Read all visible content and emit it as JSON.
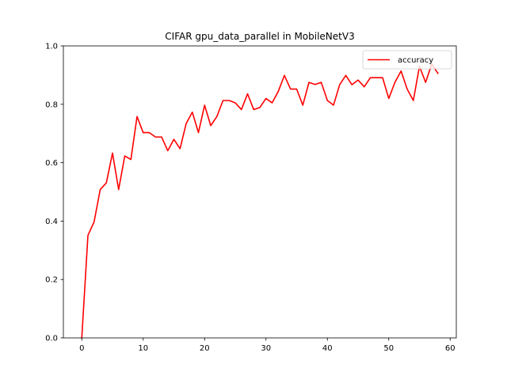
{
  "chart_data": {
    "type": "line",
    "title": "CIFAR gpu_data_parallel in MobileNetV3",
    "xlabel": "",
    "ylabel": "",
    "xlim": [
      -3,
      61
    ],
    "ylim": [
      0,
      1.0
    ],
    "xticks": [
      0,
      10,
      20,
      30,
      40,
      50,
      60
    ],
    "yticks": [
      0.0,
      0.2,
      0.4,
      0.6,
      0.8,
      1.0
    ],
    "xtick_labels": [
      "0",
      "10",
      "20",
      "30",
      "40",
      "50",
      "60"
    ],
    "ytick_labels": [
      "0.0",
      "0.2",
      "0.4",
      "0.6",
      "0.8",
      "1.0"
    ],
    "grid": false,
    "legend_placement": "upper right",
    "series": [
      {
        "name": "accuracy",
        "color": "#ff0000",
        "x": [
          0,
          1,
          2,
          3,
          4,
          5,
          6,
          7,
          8,
          9,
          10,
          11,
          12,
          13,
          14,
          15,
          16,
          17,
          18,
          19,
          20,
          21,
          22,
          23,
          24,
          25,
          26,
          27,
          28,
          29,
          30,
          31,
          32,
          33,
          34,
          35,
          36,
          37,
          38,
          39,
          40,
          41,
          42,
          43,
          44,
          45,
          46,
          47,
          48,
          49,
          50,
          51,
          52,
          53,
          54,
          55,
          56,
          57,
          58
        ],
        "values": [
          0.0,
          0.351,
          0.397,
          0.508,
          0.531,
          0.633,
          0.508,
          0.623,
          0.611,
          0.758,
          0.703,
          0.703,
          0.688,
          0.688,
          0.641,
          0.68,
          0.648,
          0.734,
          0.773,
          0.703,
          0.797,
          0.727,
          0.758,
          0.813,
          0.813,
          0.805,
          0.782,
          0.836,
          0.782,
          0.789,
          0.82,
          0.805,
          0.844,
          0.899,
          0.852,
          0.852,
          0.797,
          0.875,
          0.868,
          0.875,
          0.813,
          0.797,
          0.867,
          0.899,
          0.867,
          0.883,
          0.86,
          0.891,
          0.891,
          0.891,
          0.82,
          0.875,
          0.914,
          0.852,
          0.813,
          0.93,
          0.875,
          0.938,
          0.906
        ]
      }
    ]
  }
}
